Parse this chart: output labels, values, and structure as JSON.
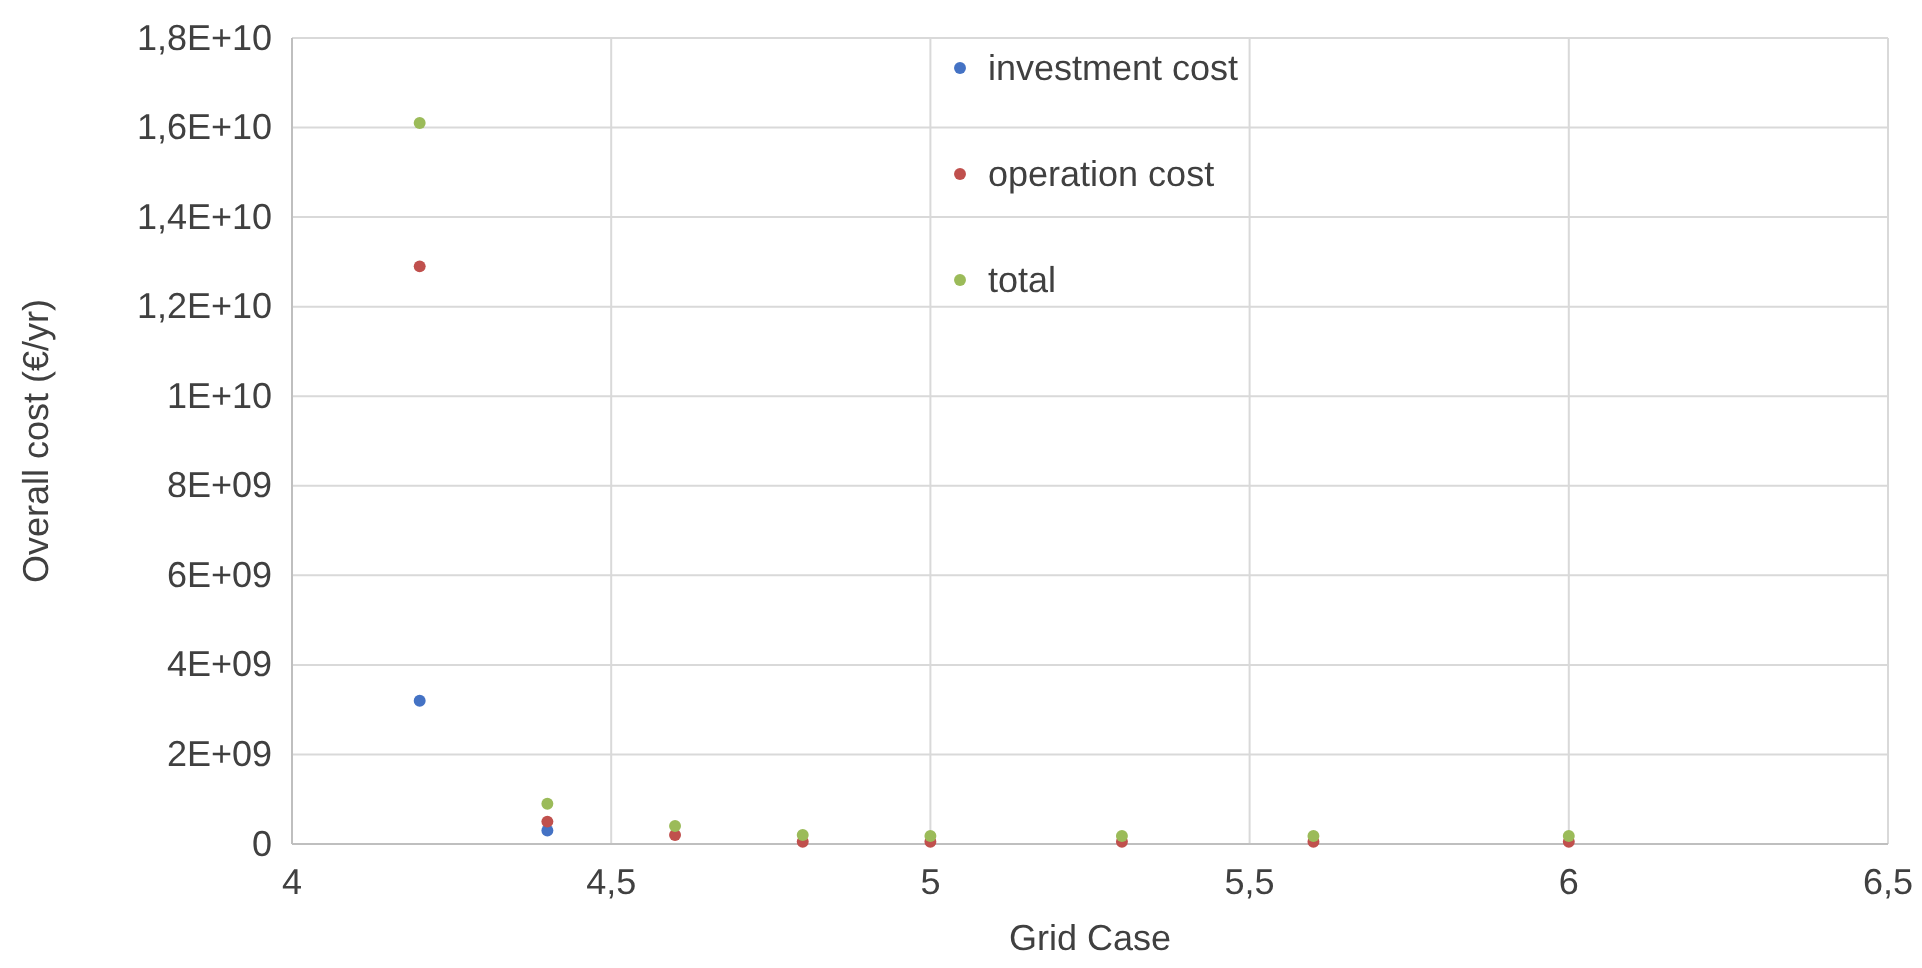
{
  "chart_data": {
    "type": "scatter",
    "xlabel": "Grid Case",
    "ylabel": "Overall cost (€/yr)",
    "marker": "circle",
    "grid": true,
    "legend": "top",
    "x": [
      4.2,
      4.4,
      4.6,
      4.8,
      5.0,
      5.3,
      5.6,
      6.0
    ],
    "series": [
      {
        "name": "investment cost",
        "color": "#4472c4",
        "values": [
          3200000000.0,
          300000000.0,
          null,
          null,
          null,
          null,
          null,
          null
        ]
      },
      {
        "name": "operation cost",
        "color": "#c0504d",
        "values": [
          12900000000.0,
          500000000.0,
          200000000.0,
          50000000.0,
          50000000.0,
          50000000.0,
          50000000.0,
          50000000.0
        ]
      },
      {
        "name": "total",
        "color": "#9bbb59",
        "values": [
          16100000000.0,
          900000000.0,
          400000000.0,
          200000000.0,
          180000000.0,
          180000000.0,
          180000000.0,
          180000000.0
        ]
      }
    ],
    "xlim": [
      4,
      6.5
    ],
    "xticks": [
      4,
      {
        "value": 4.5,
        "label": "4,5"
      },
      5,
      {
        "value": 5.5,
        "label": "5,5"
      },
      6,
      {
        "value": 6.5,
        "label": "6,5"
      }
    ],
    "ylim": [
      0,
      18000000000.0
    ],
    "yticks": [
      0,
      {
        "value": 2000000000.0,
        "label": "2E+09"
      },
      {
        "value": 4000000000.0,
        "label": "4E+09"
      },
      {
        "value": 6000000000.0,
        "label": "6E+09"
      },
      {
        "value": 8000000000.0,
        "label": "8E+09"
      },
      {
        "value": 10000000000.0,
        "label": "1E+10"
      },
      {
        "value": 12000000000.0,
        "label": "1,2E+10"
      },
      {
        "value": 14000000000.0,
        "label": "1,4E+10"
      },
      {
        "value": 16000000000.0,
        "label": "1,6E+10"
      },
      {
        "value": 18000000000.0,
        "label": "1,8E+10"
      }
    ]
  }
}
